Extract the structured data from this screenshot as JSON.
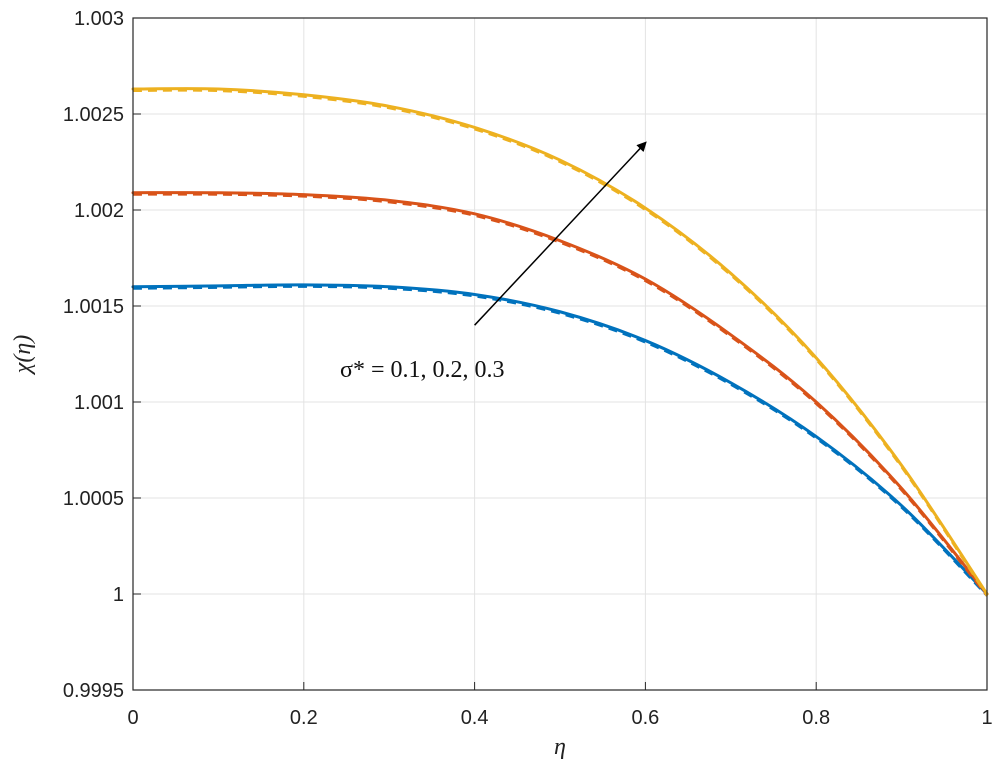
{
  "chart_data": {
    "type": "line",
    "title": "",
    "xlabel": "η",
    "ylabel": "χ(η)",
    "xlim": [
      0,
      1
    ],
    "ylim": [
      0.9995,
      1.003
    ],
    "grid": true,
    "x_ticks": [
      "0",
      "0.2",
      "0.4",
      "0.6",
      "0.8",
      "1"
    ],
    "y_ticks": [
      "0.9995",
      "1",
      "1.0005",
      "1.001",
      "1.0015",
      "1.002",
      "1.0025",
      "1.003"
    ],
    "annotation": {
      "text": "σ* = 0.1, 0.2, 0.3",
      "arrow_from": [
        0.4,
        1.0014
      ],
      "arrow_to": [
        0.6,
        1.00235
      ]
    },
    "x": [
      0,
      0.1,
      0.2,
      0.3,
      0.4,
      0.5,
      0.6,
      0.7,
      0.8,
      0.9,
      1.0
    ],
    "series": [
      {
        "color": "#0072bd",
        "line_style": "solid+dashed",
        "values": [
          1.0016,
          1.001605,
          1.00161,
          1.0016,
          1.00156,
          1.00147,
          1.00132,
          1.0011,
          1.00082,
          1.00046,
          1.0
        ]
      },
      {
        "color": "#d95319",
        "line_style": "solid+dashed",
        "values": [
          1.00209,
          1.00209,
          1.00208,
          1.00205,
          1.00198,
          1.00184,
          1.00164,
          1.00135,
          1.001,
          1.00055,
          1.0
        ]
      },
      {
        "color": "#edb120",
        "line_style": "solid+dashed",
        "values": [
          1.00263,
          1.00263,
          1.0026,
          1.00254,
          1.00243,
          1.00226,
          1.00201,
          1.00167,
          1.00123,
          1.00067,
          1.0
        ]
      }
    ]
  }
}
